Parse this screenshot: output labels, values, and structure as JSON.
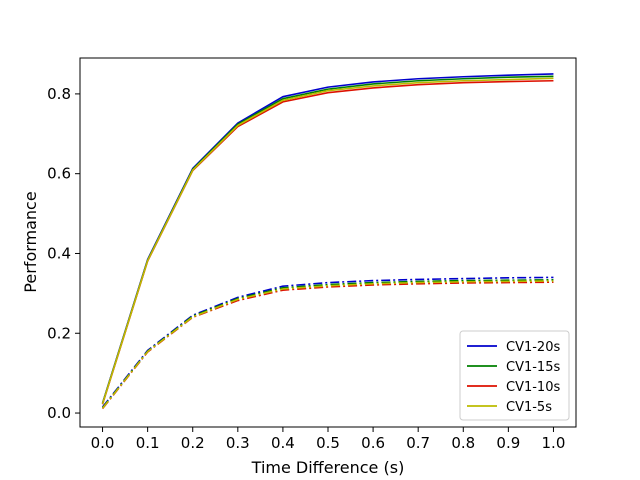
{
  "chart_data": {
    "type": "line",
    "xlabel": "Time Difference (s)",
    "ylabel": "Performance",
    "xlim": [
      -0.05,
      1.05
    ],
    "ylim": [
      -0.035,
      0.89
    ],
    "x": [
      0.0,
      0.1,
      0.2,
      0.3,
      0.4,
      0.5,
      0.6,
      0.7,
      0.8,
      0.9,
      1.0
    ],
    "x_ticks": [
      "0.0",
      "0.1",
      "0.2",
      "0.3",
      "0.4",
      "0.5",
      "0.6",
      "0.7",
      "0.8",
      "0.9",
      "1.0"
    ],
    "y_ticks": [
      "0.0",
      "0.2",
      "0.4",
      "0.6",
      "0.8"
    ],
    "grid": false,
    "legend_position": "lower-right",
    "series": [
      {
        "name": "CV1-20s",
        "color": "#0000cc",
        "style": "solid",
        "values": [
          0.025,
          0.385,
          0.613,
          0.727,
          0.793,
          0.817,
          0.83,
          0.838,
          0.843,
          0.847,
          0.85
        ]
      },
      {
        "name": "CV1-20s",
        "color": "#0000cc",
        "style": "dashdot",
        "legend": false,
        "values": [
          0.015,
          0.157,
          0.245,
          0.29,
          0.318,
          0.327,
          0.332,
          0.335,
          0.337,
          0.339,
          0.34
        ]
      },
      {
        "name": "CV1-15s",
        "color": "#008000",
        "style": "solid",
        "values": [
          0.024,
          0.383,
          0.611,
          0.724,
          0.788,
          0.812,
          0.825,
          0.833,
          0.838,
          0.842,
          0.844
        ]
      },
      {
        "name": "CV1-15s",
        "color": "#008000",
        "style": "dashdot",
        "legend": false,
        "values": [
          0.013,
          0.155,
          0.243,
          0.287,
          0.314,
          0.322,
          0.327,
          0.33,
          0.332,
          0.333,
          0.334
        ]
      },
      {
        "name": "CV1-10s",
        "color": "#dd1100",
        "style": "solid",
        "values": [
          0.022,
          0.381,
          0.608,
          0.718,
          0.78,
          0.803,
          0.815,
          0.823,
          0.828,
          0.831,
          0.833
        ]
      },
      {
        "name": "CV1-10s",
        "color": "#dd1100",
        "style": "dashdot",
        "legend": false,
        "values": [
          0.011,
          0.153,
          0.24,
          0.282,
          0.308,
          0.316,
          0.321,
          0.324,
          0.326,
          0.327,
          0.328
        ]
      },
      {
        "name": "CV1-5s",
        "color": "#bbbb00",
        "style": "solid",
        "values": [
          0.023,
          0.382,
          0.609,
          0.721,
          0.784,
          0.808,
          0.82,
          0.828,
          0.833,
          0.836,
          0.839
        ]
      },
      {
        "name": "CV1-5s",
        "color": "#bbbb00",
        "style": "dashdot",
        "legend": false,
        "values": [
          0.012,
          0.154,
          0.241,
          0.285,
          0.311,
          0.319,
          0.324,
          0.327,
          0.329,
          0.33,
          0.331
        ]
      }
    ]
  }
}
